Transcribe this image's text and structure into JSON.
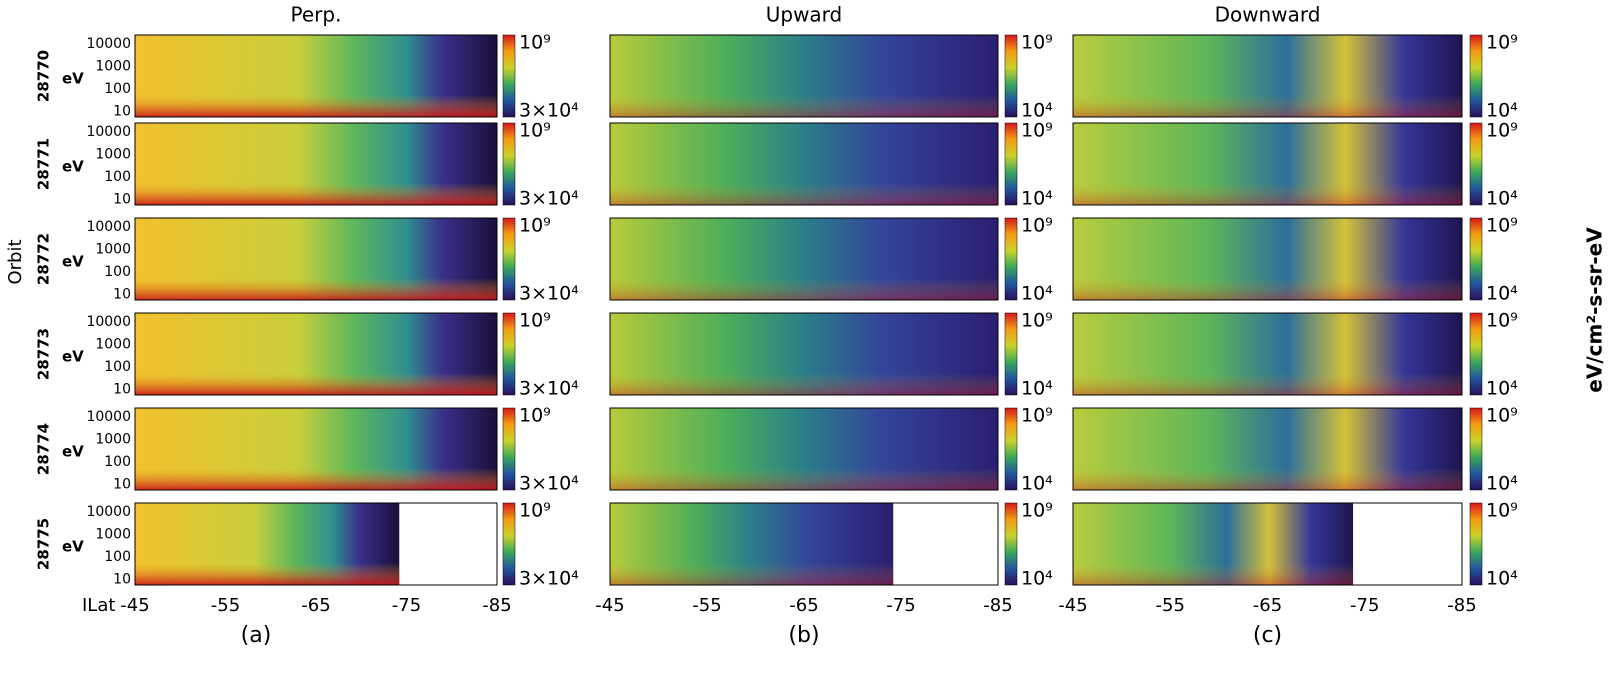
{
  "columns": [
    {
      "title": "Perp.",
      "label": "(a)",
      "colorbar_max": "10⁹",
      "colorbar_min": "3×10⁴"
    },
    {
      "title": "Upward",
      "label": "(b)",
      "colorbar_max": "10⁹",
      "colorbar_min": "10⁴"
    },
    {
      "title": "Downward",
      "label": "(c)",
      "colorbar_max": "10⁹",
      "colorbar_min": "10⁴"
    }
  ],
  "orbits": [
    "28770",
    "28771",
    "28772",
    "28773",
    "28774",
    "28775"
  ],
  "row_unit": "eV",
  "y_ticks": [
    "10000",
    "1000",
    "100",
    "10"
  ],
  "x_axis_label": "ILat",
  "x_ticks": [
    "-45",
    "-55",
    "-65",
    "-75",
    "-85"
  ],
  "y_axis_label": "Orbit",
  "colorbar_label": "eV/cm²-s-sr-eV"
}
